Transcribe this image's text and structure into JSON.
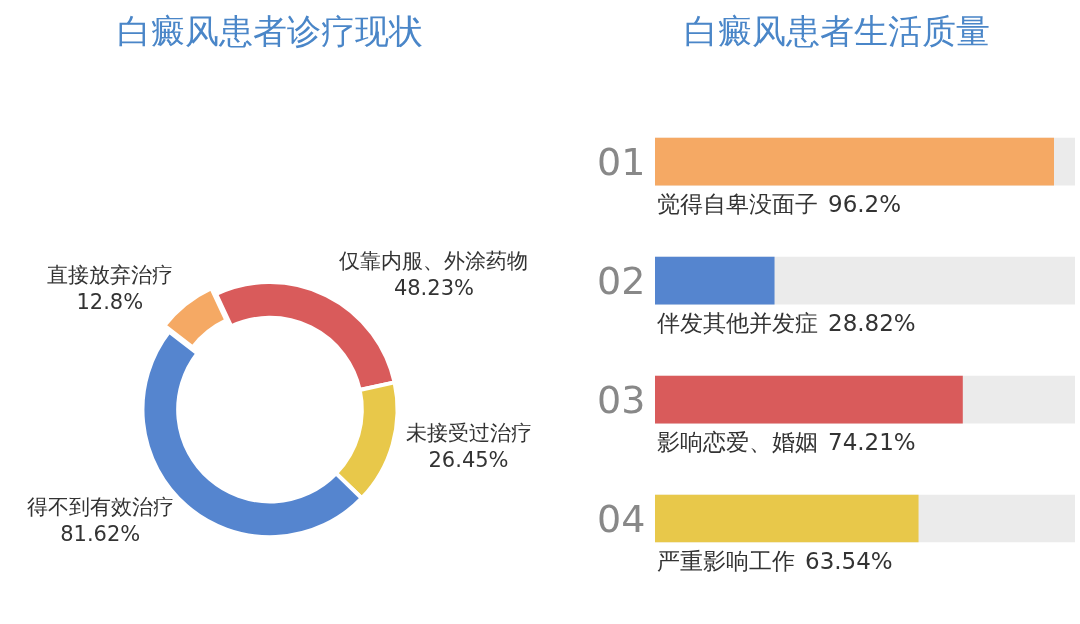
{
  "chart_data": [
    {
      "type": "donut",
      "title": "白癜风患者诊疗现状",
      "categories": [
        "仅靠内服、外涂药物",
        "未接受过治疗",
        "得不到有效治疗",
        "直接放弃治疗"
      ],
      "values": [
        48.23,
        26.45,
        81.62,
        12.8
      ],
      "colors": [
        "#d95b5b",
        "#e8c84a",
        "#5585cf",
        "#f5a964"
      ],
      "value_labels": [
        "48.23%",
        "26.45%",
        "81.62%",
        "12.8%"
      ]
    },
    {
      "type": "bar",
      "orientation": "horizontal",
      "title": "白癜风患者生活质量",
      "categories": [
        "觉得自卑没面子",
        "伴发其他并发症",
        "影响恋爱、婚姻",
        "严重影响工作"
      ],
      "values": [
        96.2,
        28.82,
        74.21,
        63.54
      ],
      "colors": [
        "#f5a964",
        "#5585cf",
        "#d95b5b",
        "#e8c84a"
      ],
      "value_labels": [
        "96.2%",
        "28.82%",
        "74.21%",
        "63.54%"
      ],
      "tick_labels": false,
      "annotations": [
        "01",
        "02",
        "03",
        "04"
      ]
    }
  ]
}
